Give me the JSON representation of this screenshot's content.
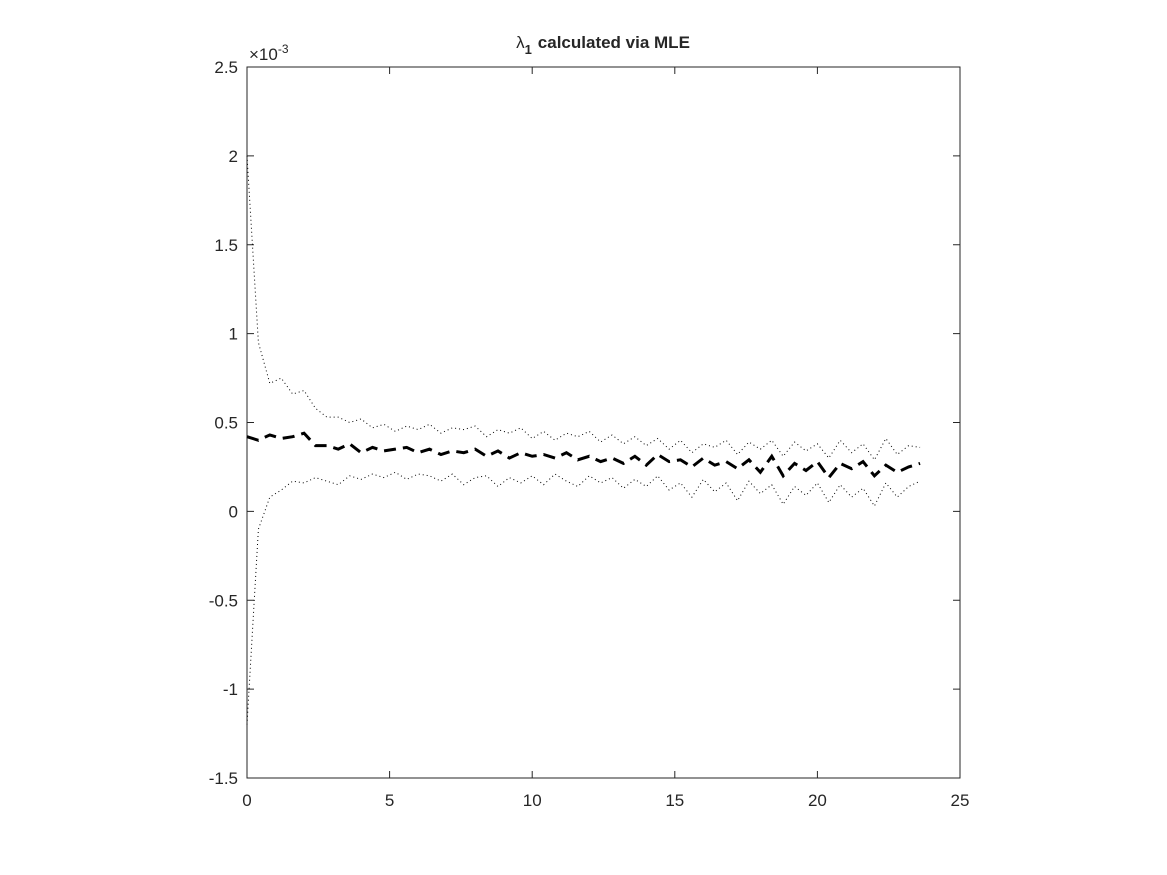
{
  "chart_data": {
    "type": "line",
    "title": {
      "symbol": "λ",
      "subscript": "1",
      "text": "calculated via MLE"
    },
    "y_multiplier": {
      "base": "×10",
      "exponent": "-3"
    },
    "x": [
      0,
      0.4,
      0.8,
      1.2,
      1.6,
      2,
      2.4,
      2.8,
      3.2,
      3.6,
      4,
      4.4,
      4.8,
      5.2,
      5.6,
      6,
      6.4,
      6.8,
      7.2,
      7.6,
      8,
      8.4,
      8.8,
      9.2,
      9.6,
      10,
      10.4,
      10.8,
      11.2,
      11.6,
      12,
      12.4,
      12.8,
      13.2,
      13.6,
      14,
      14.4,
      14.8,
      15.2,
      15.6,
      16,
      16.4,
      16.8,
      17.2,
      17.6,
      18,
      18.4,
      18.8,
      19.2,
      19.6,
      20,
      20.4,
      20.8,
      21.2,
      21.6,
      22,
      22.4,
      22.8,
      23.2,
      23.6
    ],
    "series": [
      {
        "color": "#000000",
        "style": "dashed",
        "width": 3,
        "values": [
          0.42,
          0.4,
          0.43,
          0.41,
          0.42,
          0.44,
          0.37,
          0.37,
          0.35,
          0.38,
          0.33,
          0.36,
          0.34,
          0.35,
          0.36,
          0.33,
          0.35,
          0.32,
          0.34,
          0.33,
          0.35,
          0.31,
          0.34,
          0.3,
          0.33,
          0.31,
          0.32,
          0.3,
          0.33,
          0.29,
          0.31,
          0.28,
          0.3,
          0.27,
          0.31,
          0.26,
          0.32,
          0.28,
          0.29,
          0.25,
          0.3,
          0.26,
          0.28,
          0.24,
          0.29,
          0.22,
          0.31,
          0.2,
          0.27,
          0.23,
          0.28,
          0.19,
          0.27,
          0.24,
          0.28,
          0.2,
          0.26,
          0.22,
          0.25,
          0.27
        ]
      },
      {
        "color": "#000000",
        "style": "dotted",
        "width": 1,
        "values": [
          2.0,
          0.95,
          0.72,
          0.75,
          0.66,
          0.68,
          0.58,
          0.53,
          0.53,
          0.5,
          0.52,
          0.47,
          0.49,
          0.45,
          0.48,
          0.46,
          0.49,
          0.44,
          0.47,
          0.46,
          0.48,
          0.42,
          0.46,
          0.44,
          0.47,
          0.41,
          0.45,
          0.4,
          0.44,
          0.42,
          0.45,
          0.39,
          0.43,
          0.38,
          0.42,
          0.37,
          0.41,
          0.35,
          0.4,
          0.33,
          0.38,
          0.36,
          0.4,
          0.32,
          0.39,
          0.35,
          0.4,
          0.31,
          0.39,
          0.34,
          0.38,
          0.3,
          0.4,
          0.33,
          0.38,
          0.29,
          0.41,
          0.32,
          0.37,
          0.36
        ]
      },
      {
        "color": "#000000",
        "style": "dotted",
        "width": 1,
        "values": [
          -1.2,
          -0.1,
          0.08,
          0.12,
          0.17,
          0.16,
          0.19,
          0.17,
          0.15,
          0.2,
          0.18,
          0.21,
          0.19,
          0.22,
          0.18,
          0.21,
          0.2,
          0.17,
          0.21,
          0.15,
          0.19,
          0.2,
          0.14,
          0.19,
          0.16,
          0.2,
          0.15,
          0.21,
          0.17,
          0.14,
          0.2,
          0.16,
          0.19,
          0.13,
          0.18,
          0.14,
          0.2,
          0.12,
          0.16,
          0.08,
          0.18,
          0.11,
          0.16,
          0.06,
          0.17,
          0.1,
          0.15,
          0.04,
          0.14,
          0.09,
          0.16,
          0.05,
          0.15,
          0.08,
          0.13,
          0.03,
          0.16,
          0.08,
          0.14,
          0.17
        ]
      }
    ],
    "xlim": [
      0,
      25
    ],
    "xticks": [
      0,
      5,
      10,
      15,
      20,
      25
    ],
    "ylim": [
      -1.5,
      2.5
    ],
    "yticks": [
      -1.5,
      -1,
      -0.5,
      0,
      0.5,
      1,
      1.5,
      2,
      2.5
    ],
    "grid": false,
    "box": true
  }
}
